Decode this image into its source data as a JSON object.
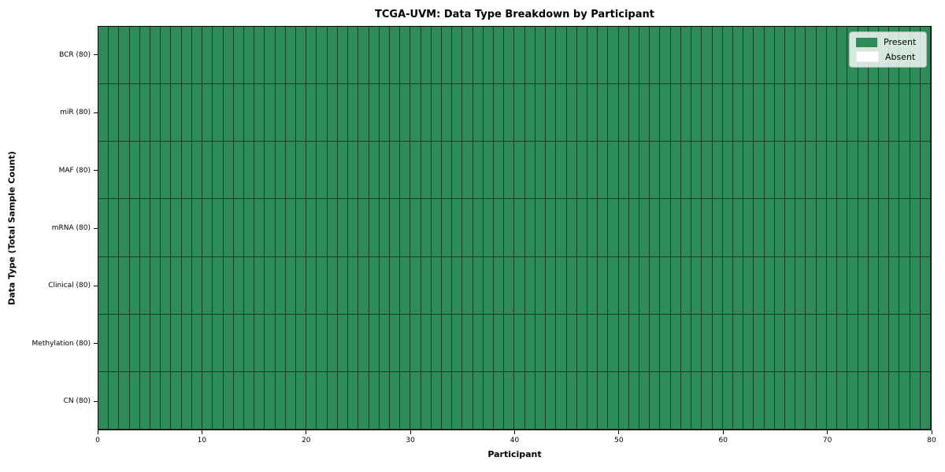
{
  "title": "TCGA-UVM: Data Type Breakdown by Participant",
  "chart_data": {
    "type": "heatmap",
    "title": "TCGA-UVM: Data Type Breakdown by Participant",
    "xlabel": "Participant",
    "ylabel": "Data Type (Total Sample Count)",
    "xlim": [
      0,
      80
    ],
    "x_ticks": [
      "0",
      "10",
      "20",
      "30",
      "40",
      "50",
      "60",
      "70",
      "80"
    ],
    "n_participants": 80,
    "rows": [
      {
        "label": "BCR (80)",
        "present_count": 80,
        "total": 80
      },
      {
        "label": "miR (80)",
        "present_count": 80,
        "total": 80
      },
      {
        "label": "MAF (80)",
        "present_count": 80,
        "total": 80
      },
      {
        "label": "mRNA (80)",
        "present_count": 80,
        "total": 80
      },
      {
        "label": "Clinical (80)",
        "present_count": 80,
        "total": 80
      },
      {
        "label": "Methylation (80)",
        "present_count": 80,
        "total": 80
      },
      {
        "label": "CN (80)",
        "present_count": 80,
        "total": 80
      }
    ],
    "cell_values_note": "all cells Present (value 1) for every row and all 80 participants",
    "legend_position": "upper right",
    "grid": "per-cell black borders"
  },
  "legend": {
    "items": [
      {
        "label": "Present",
        "color": "#2e8b57"
      },
      {
        "label": "Absent",
        "color": "#ffffff"
      }
    ]
  },
  "colors": {
    "present": "#2e8b57",
    "absent": "#ffffff",
    "cell_border": "rgba(0,0,0,0.55)",
    "axis": "#000000",
    "background": "#ffffff",
    "legend_border": "#b5b5b5"
  }
}
